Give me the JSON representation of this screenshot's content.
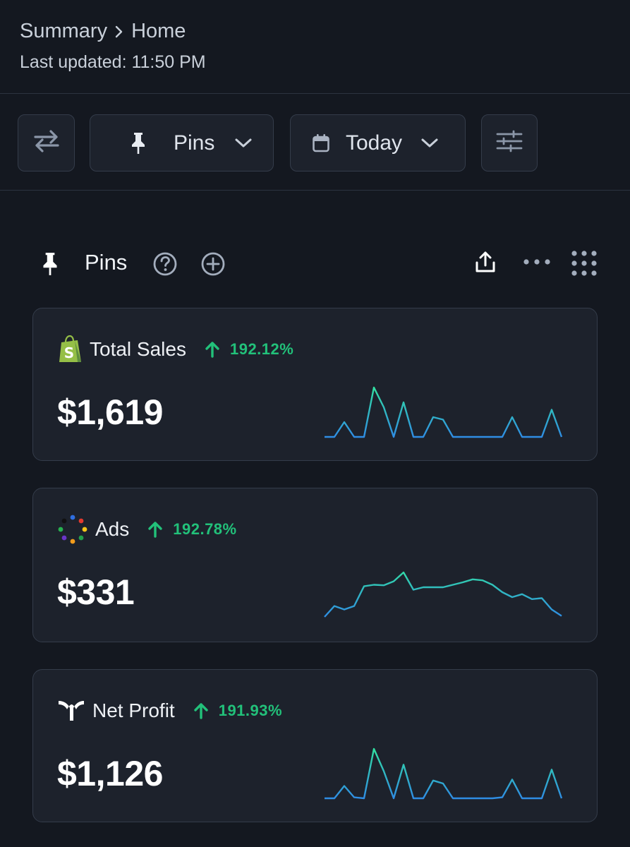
{
  "header": {
    "breadcrumb": [
      "Summary",
      "Home"
    ],
    "last_updated": "Last updated: 11:50 PM"
  },
  "toolbar": {
    "swap_icon": "swap-arrows-icon",
    "pins_filter_label": "Pins",
    "date_filter_label": "Today",
    "settings_icon": "sliders-icon"
  },
  "section": {
    "title": "Pins",
    "icons": [
      "pin-icon",
      "help-icon",
      "add-icon",
      "share-icon",
      "more-icon",
      "grid-icon"
    ]
  },
  "cards": [
    {
      "title": "Total Sales",
      "change": "192.12%",
      "value": "$1,619",
      "icon": "shopify-icon",
      "sparkline": [
        0,
        0,
        0.3,
        0,
        0,
        1,
        0.6,
        0,
        0.7,
        0,
        0,
        0.4,
        0.35,
        0,
        0,
        0,
        0,
        0,
        0,
        0.4,
        0,
        0,
        0,
        0.55,
        0
      ]
    },
    {
      "title": "Ads",
      "change": "192.78%",
      "value": "$331",
      "icon": "ads-dots-icon",
      "sparkline": [
        0,
        0.22,
        0.15,
        0.22,
        0.62,
        0.65,
        0.64,
        0.72,
        0.9,
        0.55,
        0.6,
        0.6,
        0.6,
        0.65,
        0.7,
        0.76,
        0.74,
        0.65,
        0.5,
        0.4,
        0.46,
        0.36,
        0.38,
        0.15,
        0.02
      ]
    },
    {
      "title": "Net Profit",
      "change": "191.93%",
      "value": "$1,126",
      "icon": "triple-whale-icon",
      "sparkline": [
        0,
        0,
        0.25,
        0.02,
        0,
        1,
        0.55,
        0,
        0.68,
        0,
        0,
        0.36,
        0.3,
        0,
        0,
        0,
        0,
        0,
        0.02,
        0.38,
        0,
        0,
        0,
        0.58,
        0
      ]
    }
  ],
  "colors": {
    "background": "#141820",
    "card": "#1d222c",
    "border": "#343c4a",
    "positive": "#22c17a",
    "spark_low": "#2f8de4",
    "spark_high": "#32e0a2"
  }
}
